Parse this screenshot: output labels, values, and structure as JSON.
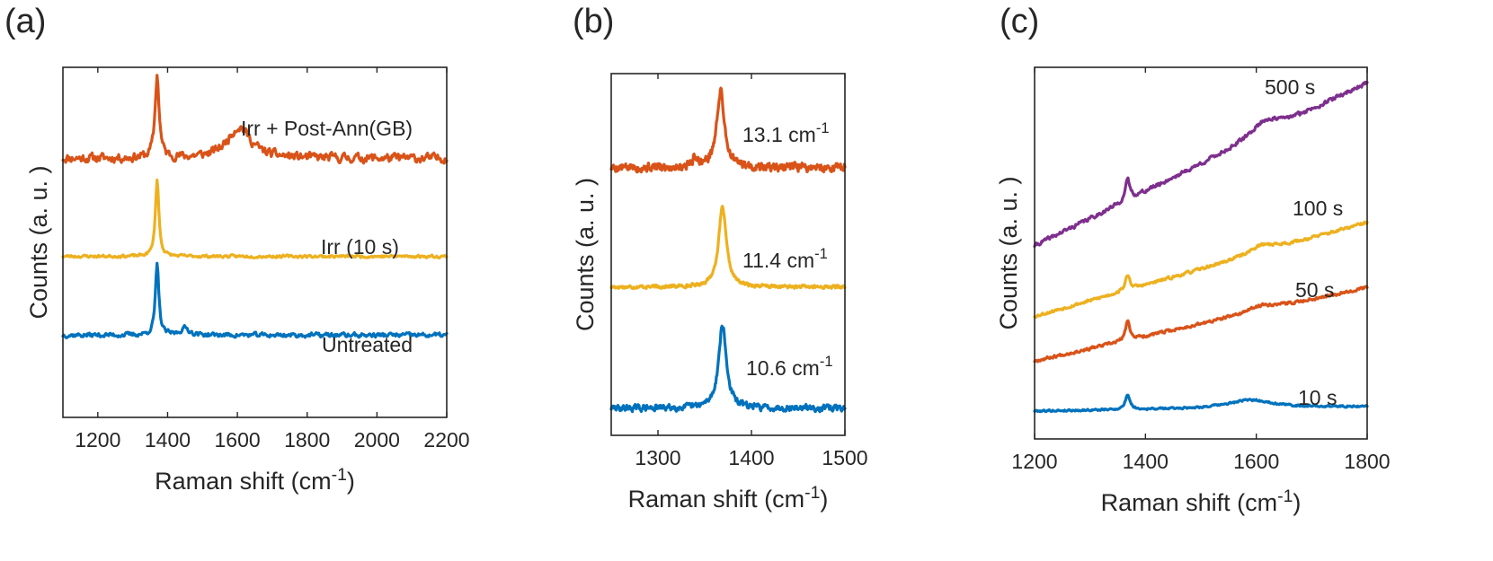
{
  "chart_data": [
    {
      "type": "line",
      "panel_label": "(a)",
      "xlabel": "Raman shift (cm",
      "xlabel_sup": "-1",
      "xlabel_close": ")",
      "ylabel": "Counts (a. u. )",
      "xlim": [
        1100,
        2200
      ],
      "ylim": [
        0,
        10
      ],
      "xticks": [
        "1200",
        "1400",
        "1600",
        "1800",
        "2000",
        "2200"
      ],
      "series": [
        {
          "name": "Irr + Post-Ann(GB)",
          "label": "Irr + Post-Ann(GB)",
          "color": "#d95319",
          "baseline": 7.4,
          "slope": 0,
          "noise": 0.2,
          "seed": 11,
          "peaks": [
            {
              "center": 1370,
              "height": 2.35,
              "width": 7
            },
            {
              "center": 1605,
              "height": 0.9,
              "width": 40
            }
          ]
        },
        {
          "name": "Irr (10 s)",
          "label": "Irr (10 s)",
          "color": "#edb120",
          "baseline": 4.6,
          "slope": 0,
          "noise": 0.06,
          "seed": 23,
          "peaks": [
            {
              "center": 1370,
              "height": 2.2,
              "width": 6
            }
          ]
        },
        {
          "name": "Untreated",
          "label": "Untreated",
          "color": "#0072bd",
          "baseline": 2.35,
          "slope": 0,
          "noise": 0.1,
          "seed": 37,
          "peaks": [
            {
              "center": 1370,
              "height": 2.0,
              "width": 6
            },
            {
              "center": 1450,
              "height": 0.2,
              "width": 15
            }
          ]
        }
      ]
    },
    {
      "type": "line",
      "panel_label": "(b)",
      "xlabel": "Raman shift (cm",
      "xlabel_sup": "-1",
      "xlabel_close": ")",
      "ylabel": "Counts (a. u. )",
      "xlim": [
        1250,
        1500
      ],
      "ylim": [
        0,
        10
      ],
      "xticks": [
        "1300",
        "1400",
        "1500"
      ],
      "series": [
        {
          "name": "13.1 cm-1",
          "label": "13.1 cm",
          "label_sup": "-1",
          "color": "#d95319",
          "baseline": 7.4,
          "slope": 0,
          "noise": 0.18,
          "seed": 5,
          "peaks": [
            {
              "center": 1367,
              "height": 2.1,
              "width": 5
            },
            {
              "center": 1340,
              "height": 0.25,
              "width": 4
            }
          ]
        },
        {
          "name": "11.4 cm-1",
          "label": "11.4 cm",
          "label_sup": "-1",
          "color": "#edb120",
          "baseline": 4.1,
          "slope": 0,
          "noise": 0.07,
          "seed": 17,
          "peaks": [
            {
              "center": 1369,
              "height": 2.2,
              "width": 5
            }
          ]
        },
        {
          "name": "10.6 cm-1",
          "label": "10.6 cm",
          "label_sup": "-1",
          "color": "#0072bd",
          "baseline": 0.75,
          "slope": 0,
          "noise": 0.13,
          "seed": 29,
          "peaks": [
            {
              "center": 1369,
              "height": 2.3,
              "width": 5
            }
          ]
        }
      ]
    },
    {
      "type": "line",
      "panel_label": "(c)",
      "xlabel": "Raman shift (cm",
      "xlabel_sup": "-1",
      "xlabel_close": ")",
      "ylabel": "Counts (a. u. )",
      "xlim": [
        1200,
        1800
      ],
      "ylim": [
        0,
        10
      ],
      "xticks": [
        "1200",
        "1400",
        "1600",
        "1800"
      ],
      "series": [
        {
          "name": "500 s",
          "label": "500 s",
          "color": "#7e2f8e",
          "baseline": 5.2,
          "slope": 0.0073,
          "noise": 0.08,
          "seed": 41,
          "peaks": [
            {
              "center": 1368,
              "height": 0.55,
              "width": 5
            },
            {
              "center": 1615,
              "height": 0.35,
              "width": 30
            }
          ]
        },
        {
          "name": "100 s",
          "label": "100 s",
          "color": "#edb120",
          "baseline": 3.3,
          "slope": 0.0042,
          "noise": 0.06,
          "seed": 53,
          "peaks": [
            {
              "center": 1368,
              "height": 0.4,
              "width": 5
            },
            {
              "center": 1610,
              "height": 0.2,
              "width": 30
            }
          ]
        },
        {
          "name": "50 s",
          "label": "50 s",
          "color": "#d95319",
          "baseline": 2.1,
          "slope": 0.0033,
          "noise": 0.06,
          "seed": 67,
          "peaks": [
            {
              "center": 1368,
              "height": 0.5,
              "width": 5
            },
            {
              "center": 1610,
              "height": 0.15,
              "width": 30
            }
          ]
        },
        {
          "name": "10 s",
          "label": "10 s",
          "color": "#0072bd",
          "baseline": 0.75,
          "slope": 0.0002,
          "noise": 0.04,
          "seed": 79,
          "peaks": [
            {
              "center": 1368,
              "height": 0.4,
              "width": 5
            },
            {
              "center": 1590,
              "height": 0.22,
              "width": 50
            }
          ]
        }
      ]
    }
  ]
}
